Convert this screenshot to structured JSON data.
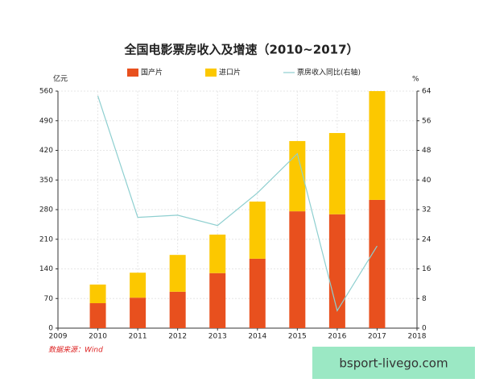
{
  "chart_data": {
    "type": "bar",
    "title": "全国电影票房收入及增速（2010~2017）",
    "y_label": "亿元",
    "y2_label": "%",
    "source": "数据来源：Wind",
    "watermark": "bsport-livego.com",
    "x": [
      2010,
      2011,
      2012,
      2013,
      2014,
      2015,
      2016,
      2017
    ],
    "xlim": [
      2009,
      2018
    ],
    "xticks": [
      2009,
      2010,
      2011,
      2012,
      2013,
      2014,
      2015,
      2016,
      2017,
      2018
    ],
    "ylim": [
      0,
      560
    ],
    "yticks": [
      0,
      70,
      140,
      210,
      280,
      350,
      420,
      490,
      560
    ],
    "y2lim": [
      0,
      64
    ],
    "y2ticks": [
      0,
      8,
      16,
      24,
      32,
      40,
      48,
      56,
      64
    ],
    "grid": true,
    "stacked": true,
    "series": [
      {
        "name": "国产片",
        "color": "#e8501e",
        "values": [
          59,
          72,
          86,
          130,
          164,
          276,
          269,
          303
        ]
      },
      {
        "name": "进口片",
        "color": "#fcc800",
        "values": [
          44,
          59,
          87,
          91,
          135,
          166,
          192,
          257
        ]
      },
      {
        "name": "票房收入同比(右轴)",
        "color": "#8ecfd0",
        "type": "line",
        "axis": "y2",
        "values": [
          62.7,
          29.9,
          30.5,
          27.7,
          36.5,
          47.1,
          4.7,
          22.2
        ]
      }
    ]
  }
}
